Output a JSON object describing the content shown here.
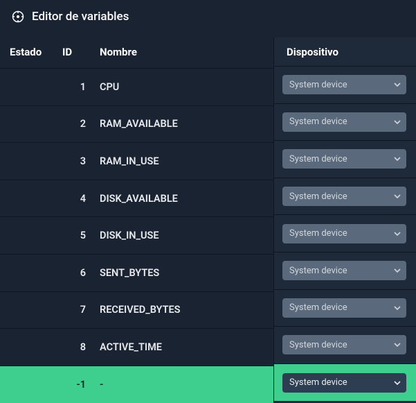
{
  "header": {
    "title": "Editor de variables"
  },
  "columns": {
    "estado": "Estado",
    "id": "ID",
    "nombre": "Nombre",
    "dispositivo": "Dispositivo"
  },
  "select_label": "System device",
  "rows": [
    {
      "id": "1",
      "nombre": "CPU",
      "highlight": false
    },
    {
      "id": "2",
      "nombre": "RAM_AVAILABLE",
      "highlight": false
    },
    {
      "id": "3",
      "nombre": "RAM_IN_USE",
      "highlight": false
    },
    {
      "id": "4",
      "nombre": "DISK_AVAILABLE",
      "highlight": false
    },
    {
      "id": "5",
      "nombre": "DISK_IN_USE",
      "highlight": false
    },
    {
      "id": "6",
      "nombre": "SENT_BYTES",
      "highlight": false
    },
    {
      "id": "7",
      "nombre": "RECEIVED_BYTES",
      "highlight": false
    },
    {
      "id": "8",
      "nombre": "ACTIVE_TIME",
      "highlight": false
    },
    {
      "id": "-1",
      "nombre": "-",
      "highlight": true
    }
  ],
  "colors": {
    "background": "#1a2332",
    "right_panel": "#1e2a3a",
    "border": "#0f1621",
    "highlight": "#3ecf8e",
    "select_bg": "#5a6a7c",
    "select_dark_bg": "#2d3e52",
    "text": "#e8eaed"
  }
}
